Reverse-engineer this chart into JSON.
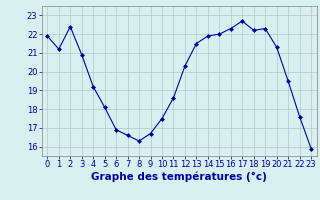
{
  "x": [
    0,
    1,
    2,
    3,
    4,
    5,
    6,
    7,
    8,
    9,
    10,
    11,
    12,
    13,
    14,
    15,
    16,
    17,
    18,
    19,
    20,
    21,
    22,
    23
  ],
  "y": [
    21.9,
    21.2,
    22.4,
    20.9,
    19.2,
    18.1,
    16.9,
    16.6,
    16.3,
    16.7,
    17.5,
    18.6,
    20.3,
    21.5,
    21.9,
    22.0,
    22.3,
    22.7,
    22.2,
    22.3,
    21.3,
    19.5,
    17.6,
    15.9
  ],
  "line_color": "#0000aa",
  "marker": "D",
  "marker_size": 2,
  "bg_color": "#d8f0f0",
  "grid_color": "#b0c8c8",
  "xlabel": "Graphe des températures (°c)",
  "xlabel_color": "#0000aa",
  "xlabel_fontsize": 7.5,
  "tick_color": "#0000aa",
  "tick_fontsize": 6,
  "ylim": [
    15.5,
    23.5
  ],
  "yticks": [
    16,
    17,
    18,
    19,
    20,
    21,
    22,
    23
  ]
}
